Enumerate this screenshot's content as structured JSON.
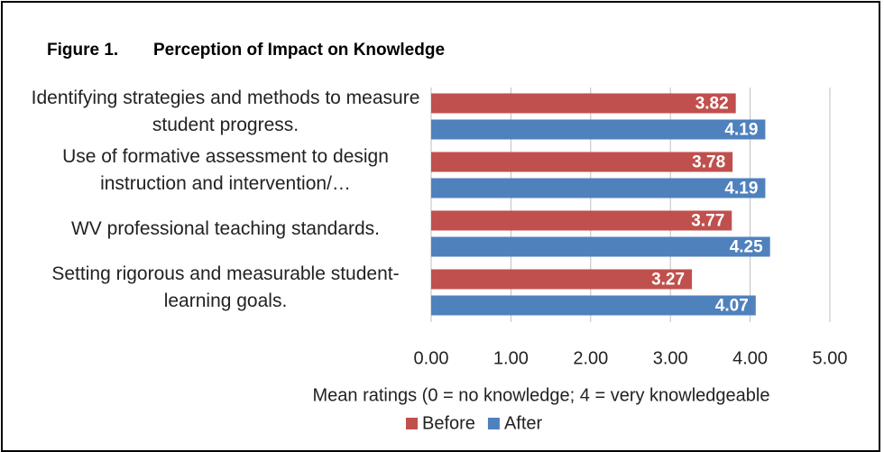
{
  "chart_data": {
    "type": "hbar",
    "figure_label": "Figure 1.",
    "title": "Perception of Impact on Knowledge",
    "categories": [
      "Identifying strategies and methods to measure student progress.",
      "Use of formative assessment to design instruction and intervention/…",
      "WV professional teaching standards.",
      "Setting rigorous and measurable student-learning goals."
    ],
    "series": [
      {
        "name": "Before",
        "color": "#c0504d",
        "values": [
          3.82,
          3.78,
          3.77,
          3.27
        ]
      },
      {
        "name": "After",
        "color": "#4f81bd",
        "values": [
          4.19,
          4.19,
          4.25,
          4.07
        ]
      }
    ],
    "xlim": [
      0,
      5
    ],
    "xticks": [
      {
        "value": 0,
        "label": "0.00"
      },
      {
        "value": 1,
        "label": "1.00"
      },
      {
        "value": 2,
        "label": "2.00"
      },
      {
        "value": 3,
        "label": "3.00"
      },
      {
        "value": 4,
        "label": "4.00"
      },
      {
        "value": 5,
        "label": "5.00"
      }
    ],
    "xlabel": "Mean ratings (0 = no knowledge; 4 = very knowledgeable",
    "grid": true,
    "legend": "bottom"
  }
}
